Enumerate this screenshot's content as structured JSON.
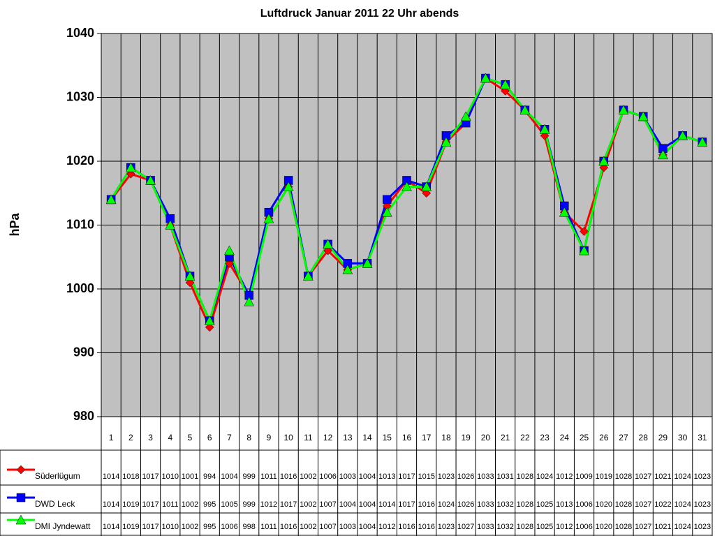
{
  "chart_data": {
    "type": "line",
    "title": "Luftdruck Januar 2011 22 Uhr abends",
    "y_label": "hPa",
    "categories": [
      "1",
      "2",
      "3",
      "4",
      "5",
      "6",
      "7",
      "8",
      "9",
      "10",
      "11",
      "12",
      "13",
      "14",
      "15",
      "16",
      "17",
      "18",
      "19",
      "20",
      "21",
      "22",
      "23",
      "24",
      "25",
      "26",
      "27",
      "28",
      "29",
      "30",
      "31"
    ],
    "ylim": [
      980,
      1040
    ],
    "yticks": [
      980,
      990,
      1000,
      1010,
      1020,
      1030,
      1040
    ],
    "grid": true,
    "plot_background": "#c0c0c0",
    "series": [
      {
        "name": "Süderlügum",
        "color": "#ff0000",
        "marker": "diamond",
        "values": [
          1014,
          1018,
          1017,
          1010,
          1001,
          994,
          1004,
          999,
          1011,
          1016,
          1002,
          1006,
          1003,
          1004,
          1013,
          1017,
          1015,
          1023,
          1026,
          1033,
          1031,
          1028,
          1024,
          1012,
          1009,
          1019,
          1028,
          1027,
          1021,
          1024,
          1023
        ]
      },
      {
        "name": "DWD Leck",
        "color": "#0000ff",
        "marker": "square",
        "values": [
          1014,
          1019,
          1017,
          1011,
          1002,
          995,
          1005,
          999,
          1012,
          1017,
          1002,
          1007,
          1004,
          1004,
          1014,
          1017,
          1016,
          1024,
          1026,
          1033,
          1032,
          1028,
          1025,
          1013,
          1006,
          1020,
          1028,
          1027,
          1022,
          1024,
          1023
        ]
      },
      {
        "name": "DMI Jyndewatt",
        "color": "#00ff00",
        "marker": "triangle",
        "values": [
          1014,
          1019,
          1017,
          1010,
          1002,
          995,
          1006,
          998,
          1011,
          1016,
          1002,
          1007,
          1003,
          1004,
          1012,
          1016,
          1016,
          1023,
          1027,
          1033,
          1032,
          1028,
          1025,
          1012,
          1006,
          1020,
          1028,
          1027,
          1021,
          1024,
          1023
        ]
      }
    ]
  }
}
